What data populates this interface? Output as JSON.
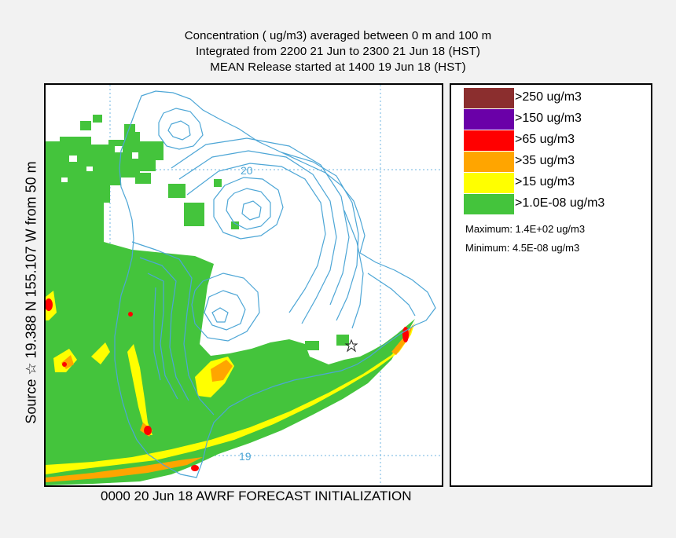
{
  "title": {
    "line1": "Concentration  ( ug/m3) averaged between    0 m and   100 m",
    "line2": "Integrated from 2200 21 Jun to 2300 21 Jun 18 (HST)",
    "line3": "MEAN Release started at 1400 19 Jun 18 (HST)"
  },
  "side_label": "Source ☆  19.388  N 155.107  W    from   50  m",
  "map": {
    "contour_labels": [
      "20",
      "19"
    ],
    "source_marker": "star-icon",
    "colors": {
      "land_outline": "#4da6d6",
      "grid": "#6fb6e0",
      "green": "#44c43c",
      "yellow": "#ffff00",
      "orange": "#ffa500",
      "red": "#ff0000",
      "purple": "#6a00a8",
      "brown": "#8b2e2e"
    }
  },
  "legend": {
    "items": [
      {
        "label": ">250  ug/m3",
        "color": "#8b2e2e"
      },
      {
        "label": ">150  ug/m3",
        "color": "#6a00a8"
      },
      {
        "label": ">65  ug/m3",
        "color": "#ff0000"
      },
      {
        "label": ">35  ug/m3",
        "color": "#ffa500"
      },
      {
        "label": ">15  ug/m3",
        "color": "#ffff00"
      },
      {
        "label": ">1.0E-08  ug/m3",
        "color": "#44c43c"
      }
    ],
    "maximum": "Maximum: 1.4E+02  ug/m3",
    "minimum": "Minimum: 4.5E-08  ug/m3"
  },
  "footer": "0000 20 Jun 18 AWRF FORECAST INITIALIZATION"
}
